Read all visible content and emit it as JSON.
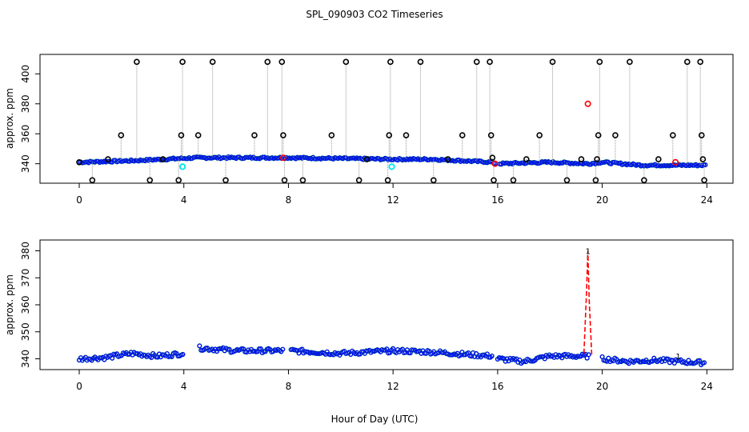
{
  "title": "SPL_090903  CO2 Timeseries",
  "shared_xlabel": "Hour of Day (UTC)",
  "colors": {
    "black": "#000000",
    "red": "#ff0000",
    "green": "#00cc00",
    "blue": "#0000ff",
    "cyan": "#00e5ee",
    "grey": "#999999"
  },
  "chart_data": [
    {
      "type": "scatter",
      "title": "SPL_090903  CO2 Timeseries",
      "ylabel": "approx. ppm",
      "xlabel": "Hour of Day (UTC)",
      "xlim": [
        -1.5,
        25
      ],
      "ylim": [
        327,
        413
      ],
      "xticks": [
        0,
        4,
        8,
        12,
        16,
        20,
        24
      ],
      "yticks": [
        340,
        360,
        380,
        400
      ],
      "baseline_segments": [
        {
          "x": [
            0,
            2,
            4.5,
            8,
            12,
            13.5,
            15.8,
            16,
            18,
            19.5,
            20,
            21.5,
            24
          ],
          "y": [
            341,
            342,
            344,
            344,
            343,
            343,
            341,
            340,
            341,
            340,
            341,
            339,
            339
          ]
        }
      ],
      "outliers_black": [
        {
          "x": 0.0,
          "y": 341
        },
        {
          "x": 0.5,
          "y": 329
        },
        {
          "x": 1.1,
          "y": 343
        },
        {
          "x": 1.6,
          "y": 359
        },
        {
          "x": 2.2,
          "y": 408
        },
        {
          "x": 2.7,
          "y": 329
        },
        {
          "x": 3.2,
          "y": 343
        },
        {
          "x": 3.8,
          "y": 329
        },
        {
          "x": 3.9,
          "y": 359
        },
        {
          "x": 3.95,
          "y": 408
        },
        {
          "x": 4.55,
          "y": 359
        },
        {
          "x": 5.1,
          "y": 408
        },
        {
          "x": 5.6,
          "y": 329
        },
        {
          "x": 6.7,
          "y": 359
        },
        {
          "x": 7.2,
          "y": 408
        },
        {
          "x": 7.75,
          "y": 408
        },
        {
          "x": 7.8,
          "y": 359
        },
        {
          "x": 7.85,
          "y": 329
        },
        {
          "x": 8.55,
          "y": 329
        },
        {
          "x": 9.65,
          "y": 359
        },
        {
          "x": 10.2,
          "y": 408
        },
        {
          "x": 10.7,
          "y": 329
        },
        {
          "x": 11.0,
          "y": 343
        },
        {
          "x": 11.8,
          "y": 329
        },
        {
          "x": 11.85,
          "y": 359
        },
        {
          "x": 11.9,
          "y": 408
        },
        {
          "x": 12.5,
          "y": 359
        },
        {
          "x": 13.05,
          "y": 408
        },
        {
          "x": 13.55,
          "y": 329
        },
        {
          "x": 14.1,
          "y": 343
        },
        {
          "x": 14.65,
          "y": 359
        },
        {
          "x": 15.2,
          "y": 408
        },
        {
          "x": 15.7,
          "y": 408
        },
        {
          "x": 15.75,
          "y": 359
        },
        {
          "x": 15.8,
          "y": 344
        },
        {
          "x": 15.85,
          "y": 329
        },
        {
          "x": 16.6,
          "y": 329
        },
        {
          "x": 17.1,
          "y": 343
        },
        {
          "x": 17.6,
          "y": 359
        },
        {
          "x": 18.1,
          "y": 408
        },
        {
          "x": 18.65,
          "y": 329
        },
        {
          "x": 19.2,
          "y": 343
        },
        {
          "x": 19.75,
          "y": 329
        },
        {
          "x": 19.8,
          "y": 343
        },
        {
          "x": 19.85,
          "y": 359
        },
        {
          "x": 19.9,
          "y": 408
        },
        {
          "x": 20.5,
          "y": 359
        },
        {
          "x": 21.05,
          "y": 408
        },
        {
          "x": 21.6,
          "y": 329
        },
        {
          "x": 22.15,
          "y": 343
        },
        {
          "x": 22.7,
          "y": 359
        },
        {
          "x": 23.25,
          "y": 408
        },
        {
          "x": 23.75,
          "y": 408
        },
        {
          "x": 23.8,
          "y": 359
        },
        {
          "x": 23.85,
          "y": 343
        },
        {
          "x": 23.9,
          "y": 329
        }
      ],
      "red_points": [
        {
          "x": 7.8,
          "y": 344
        },
        {
          "x": 19.45,
          "y": 380
        },
        {
          "x": 22.8,
          "y": 341
        },
        {
          "x": 15.9,
          "y": 340
        }
      ],
      "cyan_points": [
        {
          "x": 3.95,
          "y": 338
        },
        {
          "x": 11.95,
          "y": 338
        }
      ]
    },
    {
      "type": "scatter",
      "title": "",
      "ylabel": "approx. ppm",
      "xlabel": "Hour of Day (UTC)",
      "xlim": [
        -1.5,
        25
      ],
      "ylim": [
        336,
        384
      ],
      "xticks": [
        0,
        4,
        8,
        12,
        16,
        20,
        24
      ],
      "yticks": [
        340,
        350,
        360,
        370,
        380
      ],
      "segments": [
        {
          "x": [
            0,
            1,
            2,
            3,
            4
          ],
          "y": [
            340,
            340.5,
            342,
            341,
            342
          ]
        },
        {
          "x": [
            4.6,
            6,
            7.8
          ],
          "y": [
            344,
            343,
            343
          ]
        },
        {
          "x": [
            8.1,
            10,
            12
          ],
          "y": [
            343,
            342,
            343
          ]
        },
        {
          "x": [
            12,
            13.5,
            15.8
          ],
          "y": [
            343,
            342.5,
            341
          ]
        },
        {
          "x": [
            16,
            17,
            18,
            19.5
          ],
          "y": [
            340,
            339,
            341,
            341
          ]
        },
        {
          "x": [
            20,
            21,
            22,
            23.9
          ],
          "y": [
            340,
            339,
            339.5,
            338.5
          ]
        }
      ],
      "spike": {
        "x": [
          19.3,
          19.4,
          19.45,
          19.5,
          19.6
        ],
        "y": [
          342,
          365,
          380,
          362,
          341
        ]
      },
      "spike_label": "1",
      "spike_marker_y": 342
    }
  ]
}
